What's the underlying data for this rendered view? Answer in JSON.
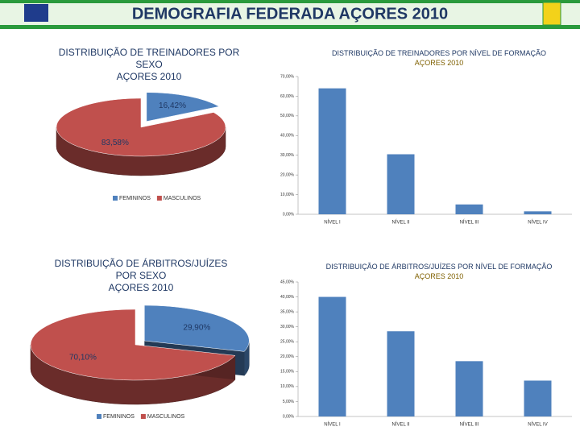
{
  "header": {
    "title": "DEMOGRAFIA FEDERADA AÇORES 2010"
  },
  "chart_data": [
    {
      "type": "pie",
      "title": "DISTRIBUIÇÃO DE TREINADORES POR SEXO",
      "subtitle": "AÇORES 2010",
      "categories": [
        "FEMININOS",
        "MASCULINOS"
      ],
      "values": [
        16.42,
        83.58
      ],
      "value_labels": [
        "16,42%",
        "83,58%"
      ],
      "colors": [
        "#4f81bd",
        "#c0504d"
      ],
      "legend": "bottom"
    },
    {
      "type": "bar",
      "title": "DISTRIBUIÇÃO DE TREINADORES POR NÍVEL DE FORMAÇÃO",
      "subtitle": "AÇORES 2010",
      "categories": [
        "NÍVEL I",
        "NÍVEL II",
        "NÍVEL III",
        "NÍVEL IV"
      ],
      "values": [
        64,
        30.5,
        5,
        1.5
      ],
      "color": "#4f81bd",
      "ylim": [
        0,
        70
      ],
      "yticks": [
        {
          "value": 0,
          "label": "0,00%"
        },
        {
          "value": 10,
          "label": "10,00%"
        },
        {
          "value": 20,
          "label": "20,00%"
        },
        {
          "value": 30,
          "label": "30,00%"
        },
        {
          "value": 40,
          "label": "40,00%"
        },
        {
          "value": 50,
          "label": "50,00%"
        },
        {
          "value": 60,
          "label": "60,00%"
        },
        {
          "value": 70,
          "label": "70,00%"
        }
      ]
    },
    {
      "type": "pie",
      "title": "DISTRIBUIÇÃO DE ÁRBITROS/JUÍZES POR SEXO",
      "subtitle": "AÇORES 2010",
      "categories": [
        "FEMININOS",
        "MASCULINOS"
      ],
      "values": [
        29.9,
        70.1
      ],
      "value_labels": [
        "29,90%",
        "70,10%"
      ],
      "colors": [
        "#4f81bd",
        "#c0504d"
      ],
      "legend": "bottom"
    },
    {
      "type": "bar",
      "title": "DISTRIBUIÇÃO DE ÁRBITROS/JUÍZES POR NÍVEL DE FORMAÇÃO",
      "subtitle": "AÇORES 2010",
      "categories": [
        "NÍVEL I",
        "NÍVEL II",
        "NÍVEL III",
        "NÍVEL IV"
      ],
      "values": [
        40,
        28.5,
        18.5,
        12
      ],
      "color": "#4f81bd",
      "ylim": [
        0,
        45
      ],
      "yticks": [
        {
          "value": 0,
          "label": "0,00%"
        },
        {
          "value": 5,
          "label": "5,00%"
        },
        {
          "value": 10,
          "label": "10,00%"
        },
        {
          "value": 15,
          "label": "15,00%"
        },
        {
          "value": 20,
          "label": "20,00%"
        },
        {
          "value": 25,
          "label": "25,00%"
        },
        {
          "value": 30,
          "label": "30,00%"
        },
        {
          "value": 35,
          "label": "35,00%"
        },
        {
          "value": 40,
          "label": "40,00%"
        },
        {
          "value": 45,
          "label": "45,00%"
        }
      ]
    }
  ]
}
